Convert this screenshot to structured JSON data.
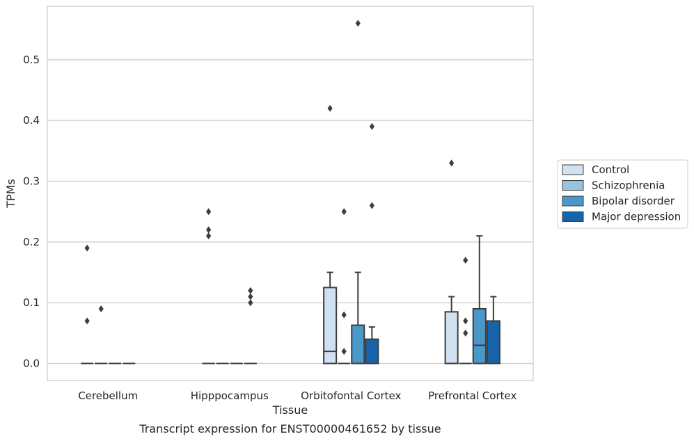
{
  "caption": "Transcript expression for ENST00000461652 by tissue",
  "chart_data": {
    "type": "box",
    "title": "",
    "xlabel": "Tissue",
    "ylabel": "TPMs",
    "ylim": [
      -0.028,
      0.588
    ],
    "yticks": [
      0.0,
      0.1,
      0.2,
      0.3,
      0.4,
      0.5
    ],
    "ytick_labels": [
      "0.0",
      "0.1",
      "0.2",
      "0.3",
      "0.4",
      "0.5"
    ],
    "grid": "horizontal",
    "legend_position": "right",
    "categories": [
      "Cerebellum",
      "Hipppocampus",
      "Orbitofontal Cortex",
      "Prefrontal Cortex"
    ],
    "series": [
      {
        "name": "Control",
        "color": "#d0e1f2",
        "boxes": [
          {
            "whislo": 0,
            "q1": 0,
            "med": 0,
            "q3": 0,
            "whishi": 0,
            "fliers": [
              0.07,
              0.19
            ]
          },
          {
            "whislo": 0,
            "q1": 0,
            "med": 0,
            "q3": 0,
            "whishi": 0,
            "fliers": [
              0.21,
              0.22,
              0.25
            ]
          },
          {
            "whislo": 0,
            "q1": 0,
            "med": 0.02,
            "q3": 0.125,
            "whishi": 0.15,
            "fliers": [
              0.42
            ]
          },
          {
            "whislo": 0,
            "q1": 0,
            "med": 0,
            "q3": 0.085,
            "whishi": 0.11,
            "fliers": [
              0.33
            ]
          }
        ]
      },
      {
        "name": "Schizophrenia",
        "color": "#94c4df",
        "boxes": [
          {
            "whislo": 0,
            "q1": 0,
            "med": 0,
            "q3": 0,
            "whishi": 0,
            "fliers": [
              0.09
            ]
          },
          {
            "whislo": 0,
            "q1": 0,
            "med": 0,
            "q3": 0,
            "whishi": 0,
            "fliers": []
          },
          {
            "whislo": 0,
            "q1": 0,
            "med": 0,
            "q3": 0,
            "whishi": 0,
            "fliers": [
              0.02,
              0.08,
              0.25
            ]
          },
          {
            "whislo": 0,
            "q1": 0,
            "med": 0,
            "q3": 0,
            "whishi": 0,
            "fliers": [
              0.05,
              0.07,
              0.17
            ]
          }
        ]
      },
      {
        "name": "Bipolar disorder",
        "color": "#4a98c9",
        "boxes": [
          {
            "whislo": 0,
            "q1": 0,
            "med": 0,
            "q3": 0,
            "whishi": 0,
            "fliers": []
          },
          {
            "whislo": 0,
            "q1": 0,
            "med": 0,
            "q3": 0,
            "whishi": 0,
            "fliers": []
          },
          {
            "whislo": 0,
            "q1": 0,
            "med": 0,
            "q3": 0.063,
            "whishi": 0.15,
            "fliers": [
              0.56
            ]
          },
          {
            "whislo": 0,
            "q1": 0,
            "med": 0.03,
            "q3": 0.09,
            "whishi": 0.21,
            "fliers": []
          }
        ]
      },
      {
        "name": "Major depression",
        "color": "#1764ab",
        "boxes": [
          {
            "whislo": 0,
            "q1": 0,
            "med": 0,
            "q3": 0,
            "whishi": 0,
            "fliers": []
          },
          {
            "whislo": 0,
            "q1": 0,
            "med": 0,
            "q3": 0,
            "whishi": 0,
            "fliers": [
              0.1,
              0.11,
              0.12
            ]
          },
          {
            "whislo": 0,
            "q1": 0,
            "med": 0,
            "q3": 0.04,
            "whishi": 0.06,
            "fliers": [
              0.26,
              0.39
            ]
          },
          {
            "whislo": 0,
            "q1": 0,
            "med": 0,
            "q3": 0.07,
            "whishi": 0.11,
            "fliers": []
          }
        ]
      }
    ]
  }
}
